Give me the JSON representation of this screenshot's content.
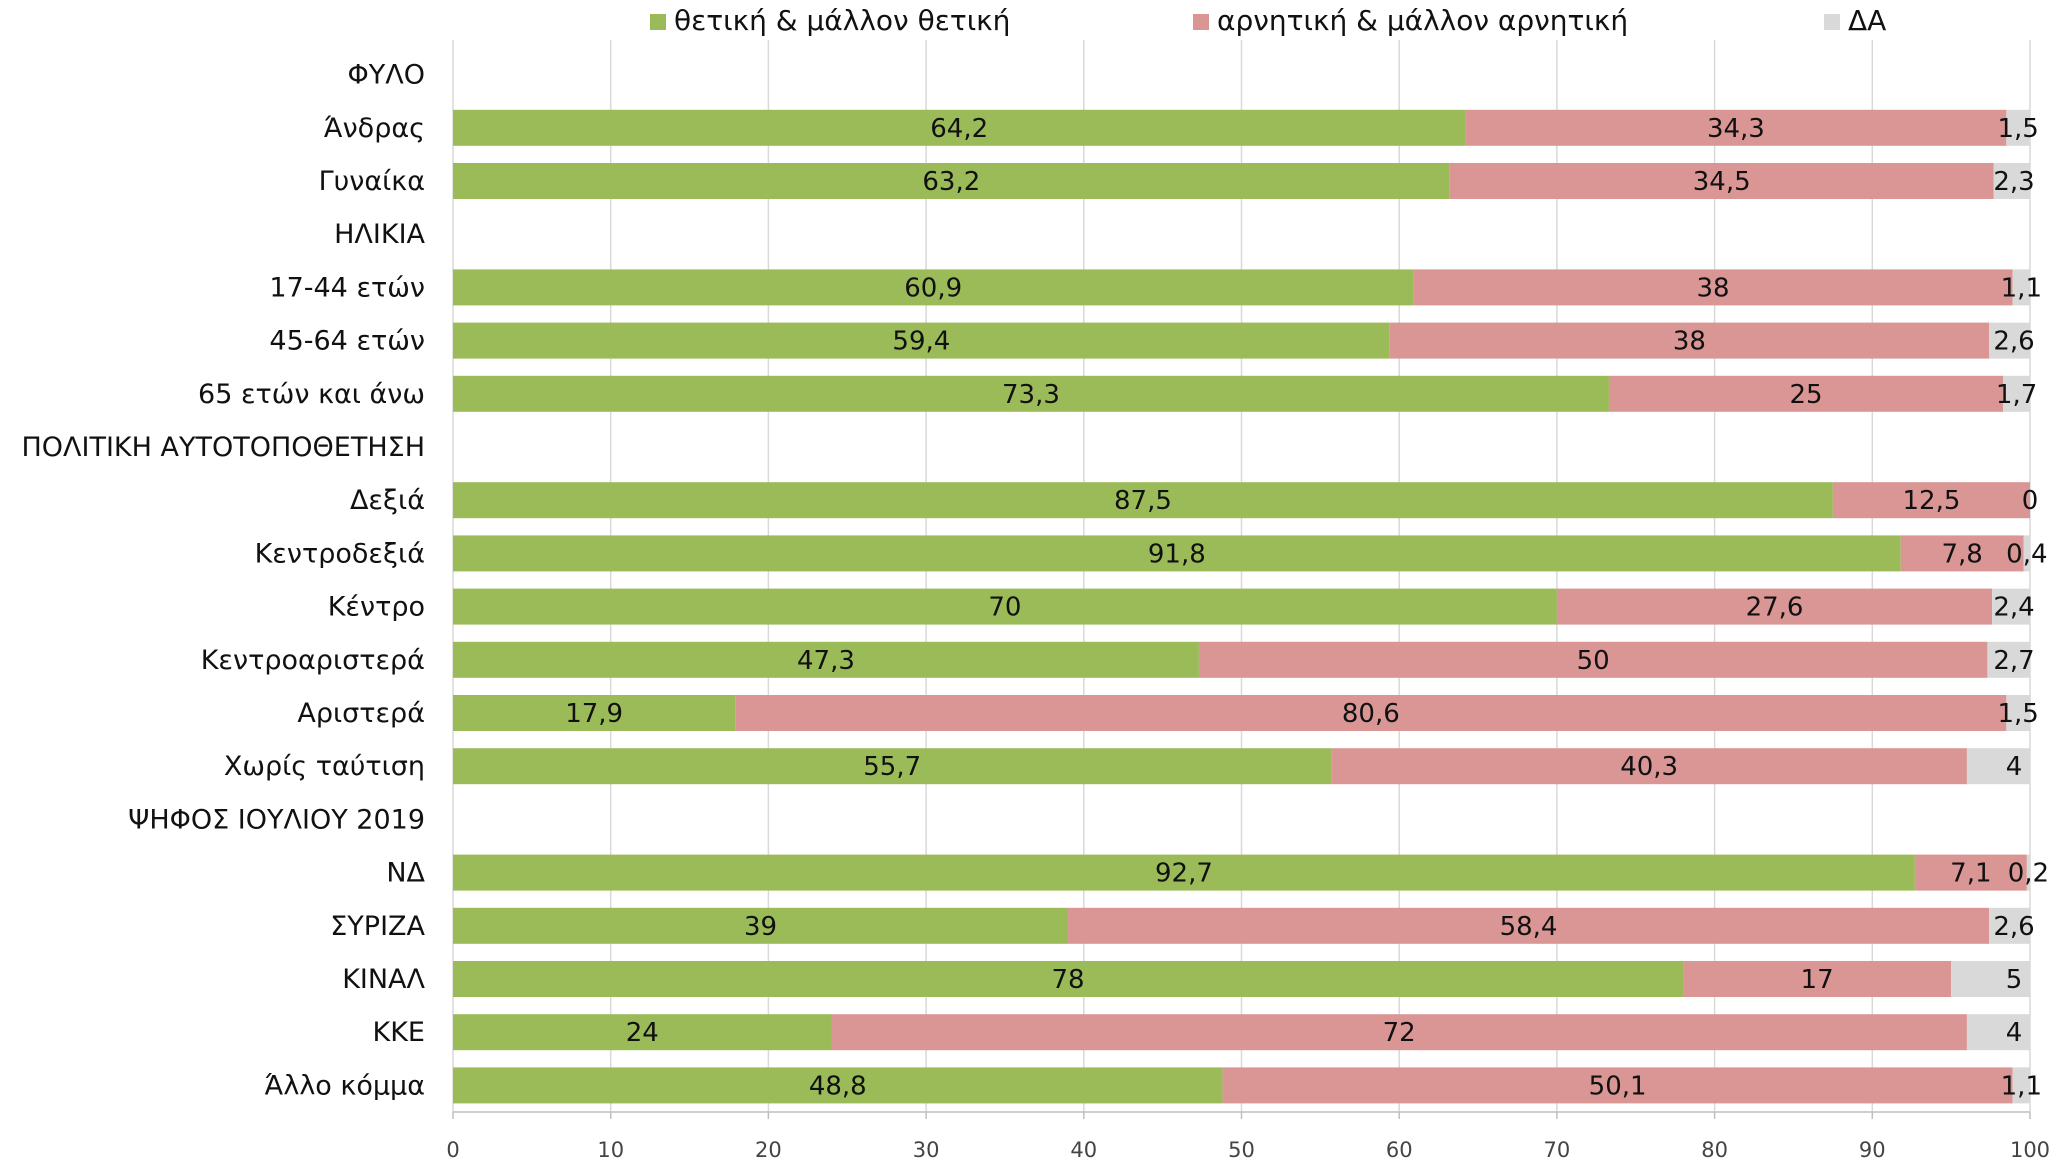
{
  "chart_data": {
    "type": "bar",
    "orientation": "horizontal",
    "stacked": true,
    "title": "",
    "xlabel": "",
    "ylabel": "",
    "xlim": [
      0,
      100
    ],
    "xticks": [
      0,
      10,
      20,
      30,
      40,
      50,
      60,
      70,
      80,
      90,
      100
    ],
    "grid": "vertical",
    "legend_position": "top",
    "categories": [
      "ΦΥΛΟ",
      "Άνδρας",
      "Γυναίκα",
      "ΗΛΙΚΙΑ",
      "17-44 ετών",
      "45-64 ετών",
      "65 ετών και άνω",
      "ΠΟΛΙΤΙΚΗ ΑΥΤΟΤΟΠΟΘΕΤΗΣΗ",
      "Δεξιά",
      "Κεντροδεξιά",
      "Κέντρο",
      "Κεντροαριστερά",
      "Αριστερά",
      "Χωρίς ταύτιση",
      "ΨΗΦΟΣ ΙΟΥΛΙΟΥ 2019",
      "ΝΔ",
      "ΣΥΡΙΖΑ",
      "ΚΙΝΑΛ",
      "ΚΚΕ",
      "Άλλο κόμμα "
    ],
    "series": [
      {
        "name": "θετική & μάλλον θετική",
        "color": "#9bbb59",
        "values": [
          null,
          64.2,
          63.2,
          null,
          60.9,
          59.4,
          73.3,
          null,
          87.5,
          91.8,
          70,
          47.3,
          17.9,
          55.7,
          null,
          92.7,
          39,
          78,
          24,
          48.8
        ],
        "labels": [
          "",
          "64,2",
          "63,2",
          "",
          "60,9",
          "59,4",
          "73,3",
          "",
          "87,5",
          "91,8",
          "70",
          "47,3",
          "17,9",
          "55,7",
          "",
          "92,7",
          "39",
          "78",
          "24",
          "48,8"
        ]
      },
      {
        "name": "αρνητική & μάλλον αρνητική",
        "color": "#d99694",
        "values": [
          null,
          34.3,
          34.5,
          null,
          38,
          38,
          25,
          null,
          12.5,
          7.8,
          27.6,
          50,
          80.6,
          40.3,
          null,
          7.1,
          58.4,
          17,
          72,
          50.1
        ],
        "labels": [
          "",
          "34,3",
          "34,5",
          "",
          "38",
          "38",
          "25",
          "",
          "12,5",
          "7,8",
          "27,6",
          "50",
          "80,6",
          "40,3",
          "",
          "7,1",
          "58,4",
          "17",
          "72",
          "50,1"
        ]
      },
      {
        "name": "ΔΑ",
        "color": "#d9d9d9",
        "values": [
          null,
          1.5,
          2.3,
          null,
          1.1,
          2.6,
          1.7,
          null,
          0,
          0.4,
          2.4,
          2.7,
          1.5,
          4,
          null,
          0.2,
          2.6,
          5,
          4,
          1.1
        ],
        "labels": [
          "",
          "1,5",
          "2,3",
          "",
          "1,1",
          "2,6",
          "1,7",
          "",
          "0",
          "0,4",
          "2,4",
          "2,7",
          "1,5",
          "4",
          "",
          "0,2",
          "2,6",
          "5",
          "4",
          "1,1"
        ]
      }
    ]
  }
}
